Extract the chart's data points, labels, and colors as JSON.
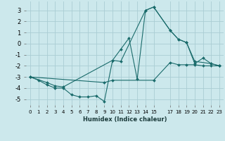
{
  "xlabel": "Humidex (Indice chaleur)",
  "bg_color": "#cce8ec",
  "grid_color": "#aacdd4",
  "line_color": "#1a6b6b",
  "xlim": [
    -0.5,
    23.5
  ],
  "ylim": [
    -5.5,
    3.8
  ],
  "xticks": [
    0,
    1,
    2,
    3,
    4,
    5,
    6,
    7,
    8,
    9,
    10,
    11,
    12,
    13,
    14,
    15,
    17,
    18,
    19,
    20,
    21,
    22,
    23
  ],
  "yticks": [
    -5,
    -4,
    -3,
    -2,
    -1,
    0,
    1,
    2,
    3
  ],
  "line1_x": [
    0,
    1,
    2,
    3,
    4,
    5,
    6,
    7,
    8,
    9,
    10,
    11,
    12,
    13,
    14,
    15,
    17,
    18,
    19,
    20,
    21,
    22,
    23
  ],
  "line1_y": [
    -3.0,
    -3.3,
    -3.7,
    -4.0,
    -4.0,
    -4.6,
    -4.8,
    -4.8,
    -4.7,
    -5.2,
    -1.5,
    -0.5,
    0.5,
    -3.2,
    3.0,
    3.3,
    1.2,
    0.4,
    0.1,
    -1.8,
    -1.3,
    -1.8,
    -2.0
  ],
  "line2_x": [
    0,
    2,
    3,
    4,
    10,
    11,
    14,
    15,
    17,
    18,
    19,
    20,
    22,
    23
  ],
  "line2_y": [
    -3.0,
    -3.5,
    -3.8,
    -3.9,
    -1.5,
    -1.6,
    3.0,
    3.3,
    1.2,
    0.4,
    0.1,
    -1.6,
    -1.8,
    -2.0
  ],
  "line3_x": [
    0,
    9,
    10,
    15,
    17,
    18,
    19,
    20,
    21,
    22,
    23
  ],
  "line3_y": [
    -3.0,
    -3.5,
    -3.3,
    -3.3,
    -1.7,
    -1.9,
    -1.9,
    -1.9,
    -2.0,
    -2.0,
    -2.0
  ]
}
